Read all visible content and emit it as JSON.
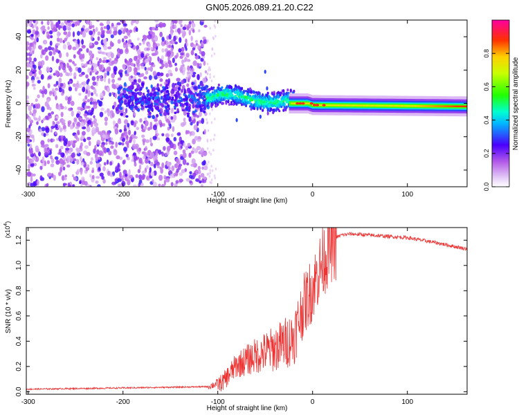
{
  "title": "GN05.2026.089.21.20.C22",
  "chart_data": [
    {
      "type": "heatmap",
      "name": "spectrogram",
      "xlabel": "Height of straight line (km)",
      "ylabel": "Frequency (Hz)",
      "xlim": [
        -302,
        163
      ],
      "ylim": [
        -50,
        50
      ],
      "x_ticks": [
        -300,
        -200,
        -100,
        0,
        100
      ],
      "y_ticks": [
        -40,
        -20,
        0,
        20,
        40
      ],
      "colorbar": {
        "label": "Normalized spectral amplitude",
        "range": [
          0,
          1
        ],
        "ticks": [
          0.0,
          0.2,
          0.4,
          0.6,
          0.8
        ]
      },
      "description_regions": [
        {
          "x_range": [
            -302,
            -112
          ],
          "freq_range": [
            -50,
            50
          ],
          "amplitude": 0.15,
          "pattern": "scattered noise"
        },
        {
          "x_range": [
            -112,
            -20
          ],
          "freq_center": 2,
          "freq_spread": 8,
          "amplitude": 0.45,
          "pattern": "wavering band"
        },
        {
          "x_range": [
            -20,
            163
          ],
          "freq_center": -1,
          "freq_spread": 3,
          "amplitude": 0.85,
          "pattern": "steady narrow band"
        }
      ]
    },
    {
      "type": "line",
      "name": "snr",
      "xlabel": "Height of straight line (km)",
      "ylabel": "SNR (10 * v/v)",
      "y_multiplier": "(x10",
      "y_multiplier_exp": "4",
      "y_multiplier_close": ")",
      "xlim": [
        -302,
        163
      ],
      "ylim": [
        -0.02,
        1.3
      ],
      "x_ticks": [
        -300,
        -200,
        -100,
        0,
        100
      ],
      "y_ticks": [
        0.0,
        0.2,
        0.4,
        0.6,
        0.8,
        1.0,
        1.2
      ],
      "color": "#ee3333",
      "key_points": {
        "x": [
          -302,
          -200,
          -110,
          -95,
          -80,
          -60,
          -40,
          -20,
          -10,
          0,
          10,
          20,
          30,
          40,
          60,
          100,
          130,
          163
        ],
        "y": [
          0.02,
          0.03,
          0.04,
          0.08,
          0.22,
          0.3,
          0.36,
          0.45,
          0.7,
          0.85,
          1.05,
          1.2,
          1.24,
          1.25,
          1.24,
          1.22,
          1.18,
          1.13
        ]
      }
    }
  ]
}
